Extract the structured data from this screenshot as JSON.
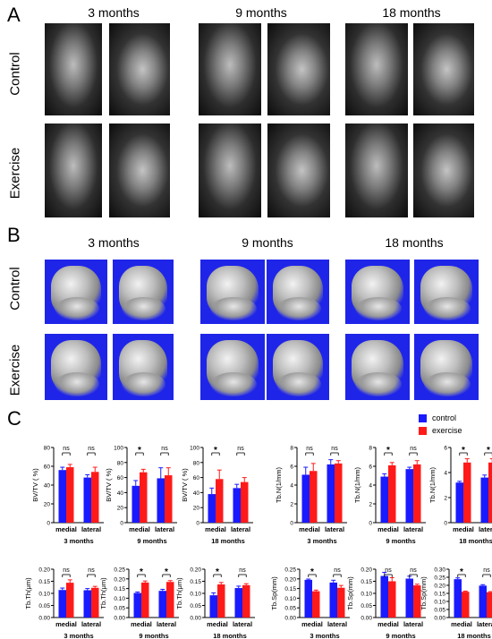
{
  "panels": {
    "a": "A",
    "b": "B",
    "c": "C"
  },
  "column_titles": [
    "3  months",
    "9  months",
    "18  months"
  ],
  "row_labels": {
    "control": "Control",
    "exercise": "Exercise"
  },
  "legend": {
    "control": "control",
    "exercise": "exercise",
    "control_color": "#1a1aff",
    "exercise_color": "#ff1a1a"
  },
  "colors": {
    "ct_background": "#1f25e8",
    "control": "#1a1aff",
    "exercise": "#ff1a1a"
  },
  "chart_data": [
    {
      "type": "bar",
      "ylabel": "BV/TV ( %)",
      "xlabel": "3 months",
      "categories": [
        "medial",
        "lateral"
      ],
      "ylim": [
        0,
        80
      ],
      "yticks": [
        "0",
        "20",
        "40",
        "60",
        "80"
      ],
      "series": [
        {
          "name": "control",
          "values": [
            56,
            48
          ],
          "errors": [
            3,
            3
          ]
        },
        {
          "name": "exercise",
          "values": [
            59,
            54
          ],
          "errors": [
            3,
            5
          ]
        }
      ],
      "annotations": [
        "ns",
        "ns"
      ]
    },
    {
      "type": "bar",
      "ylabel": "BV/TV ( %)",
      "xlabel": "9 months",
      "categories": [
        "medial",
        "lateral"
      ],
      "ylim": [
        0,
        100
      ],
      "yticks": [
        "0",
        "20",
        "40",
        "60",
        "80",
        "100"
      ],
      "series": [
        {
          "name": "control",
          "values": [
            49,
            59
          ],
          "errors": [
            7,
            14
          ]
        },
        {
          "name": "exercise",
          "values": [
            67,
            63
          ],
          "errors": [
            4,
            10
          ]
        }
      ],
      "annotations": [
        "*",
        "ns"
      ]
    },
    {
      "type": "bar",
      "ylabel": "BV/TV ( %)",
      "xlabel": "18 months",
      "categories": [
        "medial",
        "lateral"
      ],
      "ylim": [
        0,
        100
      ],
      "yticks": [
        "0",
        "20",
        "40",
        "60",
        "80",
        "100"
      ],
      "series": [
        {
          "name": "control",
          "values": [
            38,
            46
          ],
          "errors": [
            8,
            5
          ]
        },
        {
          "name": "exercise",
          "values": [
            58,
            54
          ],
          "errors": [
            12,
            6
          ]
        }
      ],
      "annotations": [
        "*",
        "ns"
      ]
    },
    {
      "type": "bar",
      "ylabel": "Tb.N(1/mm)",
      "xlabel": "3 months",
      "categories": [
        "medial",
        "lateral"
      ],
      "ylim": [
        0,
        8
      ],
      "yticks": [
        "0",
        "2",
        "4",
        "6",
        "8"
      ],
      "series": [
        {
          "name": "control",
          "values": [
            5.1,
            6.2
          ],
          "errors": [
            0.8,
            0.5
          ]
        },
        {
          "name": "exercise",
          "values": [
            5.5,
            6.3
          ],
          "errors": [
            0.8,
            0.3
          ]
        }
      ],
      "annotations": [
        "ns",
        "ns"
      ]
    },
    {
      "type": "bar",
      "ylabel": "Tb.N(1/mm)",
      "xlabel": "9 months",
      "categories": [
        "medial",
        "lateral"
      ],
      "ylim": [
        0,
        8
      ],
      "yticks": [
        "0",
        "2",
        "4",
        "6",
        "8"
      ],
      "series": [
        {
          "name": "control",
          "values": [
            4.9,
            5.7
          ],
          "errors": [
            0.3,
            0.2
          ]
        },
        {
          "name": "exercise",
          "values": [
            6.1,
            6.2
          ],
          "errors": [
            0.3,
            0.4
          ]
        }
      ],
      "annotations": [
        "*",
        "ns"
      ]
    },
    {
      "type": "bar",
      "ylabel": "Tb.N(1/mm)",
      "xlabel": "18 months",
      "categories": [
        "medial",
        "lateral"
      ],
      "ylim": [
        0,
        6
      ],
      "yticks": [
        "0",
        "2",
        "4",
        "6"
      ],
      "series": [
        {
          "name": "control",
          "values": [
            3.2,
            3.6
          ],
          "errors": [
            0.1,
            0.2
          ]
        },
        {
          "name": "exercise",
          "values": [
            4.8,
            4.8
          ],
          "errors": [
            0.3,
            0.3
          ]
        }
      ],
      "annotations": [
        "*",
        "*"
      ]
    },
    {
      "type": "bar",
      "ylabel": "Tb.Th(μm)",
      "xlabel": "3 months",
      "categories": [
        "medial",
        "lateral"
      ],
      "ylim": [
        0,
        0.2
      ],
      "yticks": [
        "0.00",
        "0.05",
        "0.10",
        "0.15",
        "0.20"
      ],
      "series": [
        {
          "name": "control",
          "values": [
            0.114,
            0.113
          ],
          "errors": [
            0.008,
            0.007
          ]
        },
        {
          "name": "exercise",
          "values": [
            0.144,
            0.123
          ],
          "errors": [
            0.012,
            0.006
          ]
        }
      ],
      "annotations": [
        "ns",
        "ns"
      ]
    },
    {
      "type": "bar",
      "ylabel": "Tb.Th(μm)",
      "xlabel": "9 months",
      "categories": [
        "medial",
        "lateral"
      ],
      "ylim": [
        0,
        0.25
      ],
      "yticks": [
        "0.00",
        "0.05",
        "0.10",
        "0.15",
        "0.20",
        "0.25"
      ],
      "series": [
        {
          "name": "control",
          "values": [
            0.127,
            0.138
          ],
          "errors": [
            0.005,
            0.008
          ]
        },
        {
          "name": "exercise",
          "values": [
            0.181,
            0.184
          ],
          "errors": [
            0.008,
            0.007
          ]
        }
      ],
      "annotations": [
        "*",
        "*"
      ]
    },
    {
      "type": "bar",
      "ylabel": "Tb.Th(μm)",
      "xlabel": "18 months",
      "categories": [
        "medial",
        "lateral"
      ],
      "ylim": [
        0,
        0.2
      ],
      "yticks": [
        "0.00",
        "0.05",
        "0.10",
        "0.15",
        "0.20"
      ],
      "series": [
        {
          "name": "control",
          "values": [
            0.092,
            0.122
          ],
          "errors": [
            0.01,
            0.008
          ]
        },
        {
          "name": "exercise",
          "values": [
            0.137,
            0.134
          ],
          "errors": [
            0.008,
            0.006
          ]
        }
      ],
      "annotations": [
        "*",
        "ns"
      ]
    },
    {
      "type": "bar",
      "ylabel": "Tb.Sp(mm)",
      "xlabel": "3 months",
      "categories": [
        "medial",
        "lateral"
      ],
      "ylim": [
        0,
        0.25
      ],
      "yticks": [
        "0.00",
        "0.05",
        "0.10",
        "0.15",
        "0.20",
        "0.25"
      ],
      "series": [
        {
          "name": "control",
          "values": [
            0.195,
            0.181
          ],
          "errors": [
            0.004,
            0.012
          ]
        },
        {
          "name": "exercise",
          "values": [
            0.136,
            0.154
          ],
          "errors": [
            0.006,
            0.012
          ]
        }
      ],
      "annotations": [
        "*",
        "ns"
      ]
    },
    {
      "type": "bar",
      "ylabel": "Tb.Sp(mm)",
      "xlabel": "9 months",
      "categories": [
        "medial",
        "lateral"
      ],
      "ylim": [
        0,
        0.2
      ],
      "yticks": [
        "0.00",
        "0.05",
        "0.10",
        "0.15",
        "0.20"
      ],
      "series": [
        {
          "name": "control",
          "values": [
            0.172,
            0.161
          ],
          "errors": [
            0.015,
            0.01
          ]
        },
        {
          "name": "exercise",
          "values": [
            0.15,
            0.133
          ],
          "errors": [
            0.015,
            0.005
          ]
        }
      ],
      "annotations": [
        "ns",
        "ns"
      ]
    },
    {
      "type": "bar",
      "ylabel": "Tb.Sp(mm)",
      "xlabel": "18 months",
      "categories": [
        "medial",
        "lateral"
      ],
      "ylim": [
        0,
        0.3
      ],
      "yticks": [
        "0.00",
        "0.05",
        "0.10",
        "0.15",
        "0.20",
        "0.25",
        "0.30"
      ],
      "series": [
        {
          "name": "control",
          "values": [
            0.238,
            0.198
          ],
          "errors": [
            0.008,
            0.006
          ]
        },
        {
          "name": "exercise",
          "values": [
            0.16,
            0.157
          ],
          "errors": [
            0.004,
            0.004
          ]
        }
      ],
      "annotations": [
        "*",
        "ns"
      ]
    }
  ]
}
